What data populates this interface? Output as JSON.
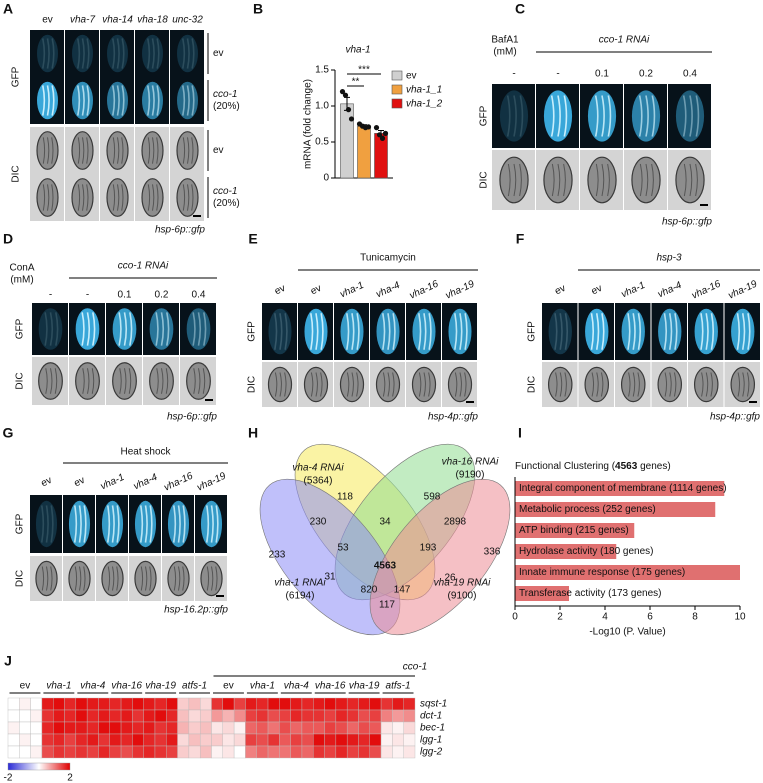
{
  "panels": {
    "A": {
      "label": "A",
      "columns": [
        "ev",
        "vha-7",
        "vha-14",
        "vha-18",
        "unc-32"
      ],
      "rows": [
        "GFP",
        "DIC"
      ],
      "conditions": [
        [
          "ev"
        ],
        [
          "cco-1",
          "(20%)"
        ]
      ],
      "caption": "hsp-6p::gfp"
    },
    "C": {
      "label": "C",
      "treatment": [
        "BafA1",
        "(mM)"
      ],
      "header": "cco-1 RNAi",
      "columns": [
        "-",
        "-",
        "0.1",
        "0.2",
        "0.4"
      ],
      "rows": [
        "GFP",
        "DIC"
      ],
      "caption": "hsp-6p::gfp"
    },
    "D": {
      "label": "D",
      "treatment": [
        "ConA",
        "(mM)"
      ],
      "header": "cco-1 RNAi",
      "columns": [
        "-",
        "-",
        "0.1",
        "0.2",
        "0.4"
      ],
      "rows": [
        "GFP",
        "DIC"
      ],
      "caption": "hsp-6p::gfp"
    },
    "E": {
      "label": "E",
      "header": "Tunicamycin",
      "columns": [
        "ev",
        "ev",
        "vha-1",
        "vha-4",
        "vha-16",
        "vha-19"
      ],
      "rows": [
        "GFP",
        "DIC"
      ],
      "caption": "hsp-4p::gfp"
    },
    "F": {
      "label": "F",
      "header": "hsp-3",
      "columns": [
        "ev",
        "ev",
        "vha-1",
        "vha-4",
        "vha-16",
        "vha-19"
      ],
      "rows": [
        "GFP",
        "DIC"
      ],
      "caption": "hsp-4p::gfp"
    },
    "G": {
      "label": "G",
      "header": "Heat shock",
      "columns": [
        "ev",
        "ev",
        "vha-1",
        "vha-4",
        "vha-16",
        "vha-19"
      ],
      "rows": [
        "GFP",
        "DIC"
      ],
      "caption": "hsp-16.2p::gfp"
    },
    "H": {
      "label": "H",
      "sets": [
        {
          "name": "vha-4 RNAi",
          "total": "(5364)",
          "color": "#f5ea5a",
          "text_color": "#d4a800"
        },
        {
          "name": "vha-16 RNAi",
          "total": "(9190)",
          "color": "#8fdc8f",
          "text_color": "#4caf50"
        },
        {
          "name": "vha-1 RNAi",
          "total": "(6194)",
          "color": "#8c8cf5",
          "text_color": "#2020d0"
        },
        {
          "name": "vha-19 RNAi",
          "total": "(9100)",
          "color": "#ec8c96",
          "text_color": "#e06080"
        }
      ],
      "regions": [
        118,
        598,
        230,
        34,
        2898,
        233,
        53,
        4563,
        193,
        336,
        31,
        820,
        147,
        26,
        117
      ]
    }
  },
  "chart_data": [
    {
      "type": "bar",
      "panel": "B",
      "title": "vha-1",
      "ylabel": "mRNA (fold change)",
      "categories": [
        "ev",
        "vha-1_1",
        "vha-1_2"
      ],
      "values": [
        1.03,
        0.72,
        0.62
      ],
      "errors": [
        0.09,
        0.02,
        0.04
      ],
      "points": [
        [
          1.2,
          1.15,
          0.95,
          0.82
        ],
        [
          0.75,
          0.72,
          0.7,
          0.71
        ],
        [
          0.7,
          0.6,
          0.55,
          0.62
        ]
      ],
      "colors": [
        "#d0d0d0",
        "#f0a040",
        "#e01010"
      ],
      "legend": "right",
      "significance": [
        {
          "label": "**",
          "pair": [
            "ev",
            "vha-1_1"
          ]
        },
        {
          "label": "***",
          "pair": [
            "ev",
            "vha-1_2"
          ]
        }
      ],
      "ylim": [
        0,
        1.5
      ],
      "yticks": [
        0,
        {
          "value": 0.5,
          "label": "0.5"
        },
        {
          "value": 1,
          "label": "1.0"
        },
        {
          "value": 1.5,
          "label": "1.5"
        }
      ]
    },
    {
      "type": "barh",
      "panel": "I",
      "title": [
        "Functional Clustering (",
        "4563",
        " genes)"
      ],
      "categories": [
        "Integral component of membrane (1114 genes)",
        "Metabolic process (252 genes)",
        "ATP binding (215 genes)",
        "Hydrolase activity (180 genes)",
        "Innate immune response (175 genes)",
        "Transferase activity (173 genes)"
      ],
      "values": [
        9.3,
        8.9,
        5.3,
        4.5,
        10.0,
        2.4
      ],
      "color": "#e07070",
      "xlabel": "-Log10 (P. Value)",
      "xlim": [
        0,
        10
      ],
      "xticks": [
        0,
        2,
        4,
        6,
        8,
        10
      ]
    },
    {
      "type": "heatmap",
      "panel": "J",
      "group_header": "cco-1",
      "categories": [
        "ev",
        null,
        null,
        "vha-1",
        null,
        null,
        "vha-4",
        null,
        null,
        "vha-16",
        null,
        null,
        "vha-19",
        null,
        null,
        "atfs-1",
        null,
        null,
        "ev",
        null,
        null,
        "vha-1",
        null,
        null,
        "vha-4",
        null,
        null,
        "vha-16",
        null,
        null,
        "vha-19",
        null,
        null,
        "atfs-1",
        null,
        null
      ],
      "rows": [
        "sqst-1",
        "dct-1",
        "bec-1",
        "lgg-1",
        "lgg-2"
      ],
      "values": [
        [
          0,
          0.1,
          0,
          1.8,
          1.9,
          1.7,
          1.9,
          1.8,
          1.8,
          1.7,
          1.8,
          1.9,
          1.8,
          1.7,
          1.9,
          0.4,
          0.5,
          0.3,
          1.6,
          1.9,
          1.5,
          1.8,
          1.7,
          1.9,
          1.9,
          1.8,
          1.7,
          1.8,
          1.9,
          1.8,
          1.7,
          1.8,
          1.9,
          1.6,
          1.8,
          1.7
        ],
        [
          0,
          0,
          0.1,
          1.6,
          1.8,
          1.7,
          1.9,
          1.7,
          1.8,
          1.7,
          1.8,
          1.6,
          1.8,
          1.9,
          1.7,
          0.5,
          0.3,
          0.4,
          0.8,
          0.6,
          0.9,
          1.5,
          1.6,
          1.4,
          1.5,
          1.7,
          1.6,
          1.6,
          1.5,
          1.7,
          1.6,
          1.4,
          1.5,
          1.0,
          0.8,
          0.9
        ],
        [
          0.1,
          0,
          0,
          1.7,
          1.9,
          1.8,
          1.8,
          1.7,
          1.9,
          1.9,
          1.8,
          1.7,
          1.8,
          1.6,
          1.7,
          0.6,
          0.4,
          0.5,
          0.2,
          0.3,
          0.1,
          1.2,
          1.3,
          1.1,
          1.4,
          1.2,
          1.3,
          1.3,
          1.5,
          1.4,
          1.2,
          1.4,
          1.3,
          0.2,
          0.1,
          0.3
        ],
        [
          0,
          0.1,
          0,
          1.6,
          1.7,
          1.5,
          1.7,
          1.8,
          1.6,
          1.8,
          1.7,
          1.9,
          1.7,
          1.6,
          1.8,
          0.3,
          0.5,
          0.4,
          0.4,
          0.2,
          0.3,
          1.5,
          1.4,
          1.6,
          1.3,
          1.5,
          1.4,
          1.9,
          1.8,
          1.9,
          1.8,
          1.7,
          1.9,
          0.1,
          0.2,
          0.1
        ],
        [
          0,
          0,
          0.1,
          1.4,
          1.6,
          1.5,
          1.6,
          1.5,
          1.7,
          1.5,
          1.4,
          1.6,
          1.7,
          1.6,
          1.5,
          0.4,
          0.3,
          0.5,
          0.1,
          0.2,
          0,
          1.0,
          1.2,
          1.1,
          1.1,
          1.3,
          1.2,
          1.6,
          1.5,
          1.7,
          1.5,
          1.6,
          1.4,
          0.2,
          0.1,
          0.2
        ]
      ],
      "colors": [
        "#2b2bd6",
        "#ffffff",
        "#e00000"
      ],
      "vlim": [
        -2,
        2
      ],
      "cticks": [
        -2,
        2
      ]
    }
  ]
}
